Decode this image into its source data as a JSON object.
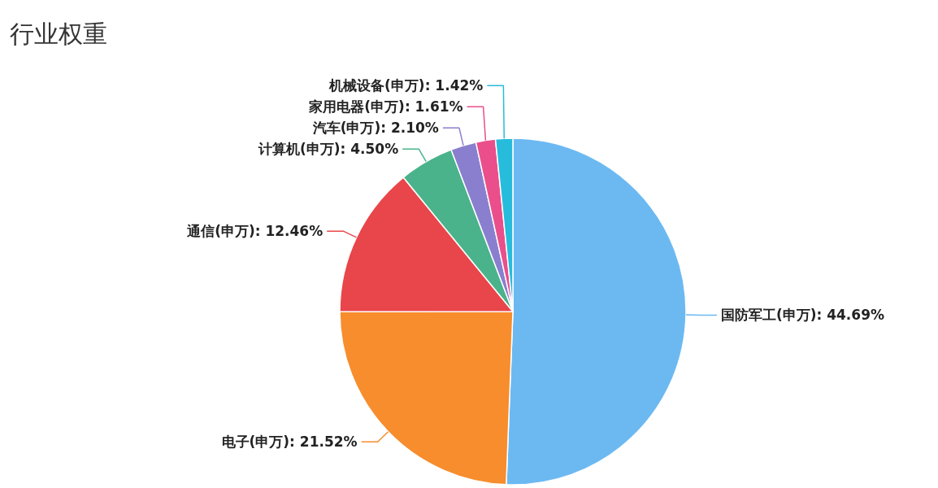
{
  "chart_data": {
    "type": "pie",
    "title": "行业权重",
    "categories": [
      "国防军工(申万)",
      "电子(申万)",
      "通信(申万)",
      "计算机(申万)",
      "汽车(申万)",
      "家用电器(申万)",
      "机械设备(申万)"
    ],
    "values": [
      44.69,
      21.52,
      12.46,
      4.5,
      2.1,
      1.61,
      1.42
    ],
    "value_labels": [
      "44.69%",
      "21.52%",
      "12.46%",
      "4.50%",
      "2.10%",
      "1.61%",
      "1.42%"
    ],
    "colors": [
      "#6cb9f2",
      "#f78d2c",
      "#e8464a",
      "#4ab38b",
      "#8a7fcf",
      "#ea4f8c",
      "#27bcdc"
    ],
    "legend": false
  }
}
